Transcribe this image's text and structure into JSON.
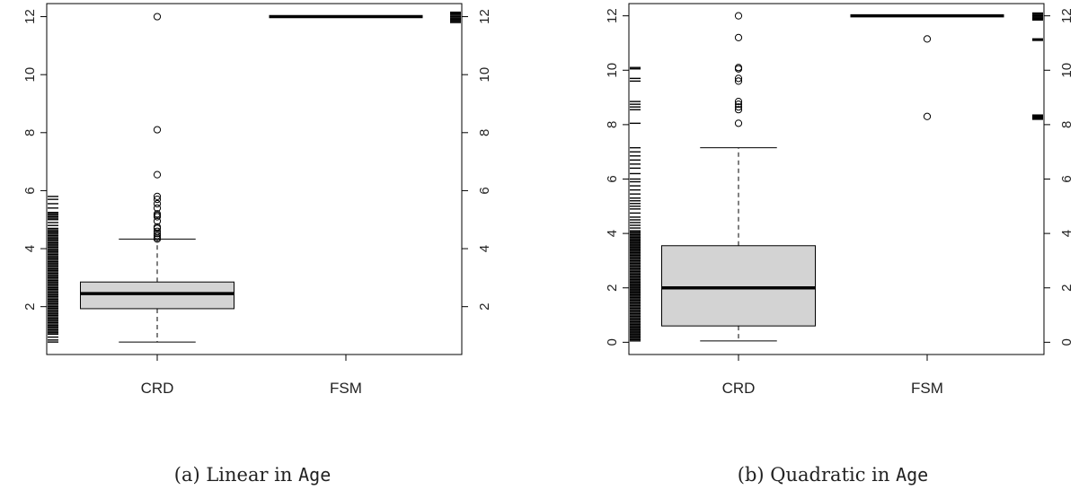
{
  "chart_data": [
    {
      "type": "boxplot",
      "caption_prefix": "(a) Linear in ",
      "caption_code": "Age",
      "categories": [
        "CRD",
        "FSM"
      ],
      "ylim": [
        0.35,
        12.45
      ],
      "yticks": [
        2,
        4,
        6,
        8,
        10,
        12
      ],
      "right_ticks": [
        2,
        4,
        6,
        8,
        10,
        12
      ],
      "boxes": [
        {
          "category": "CRD",
          "q1": 1.93,
          "median": 2.45,
          "q3": 2.85,
          "whisker_low": 0.78,
          "whisker_high": 4.33,
          "outliers": [
            4.33,
            4.38,
            4.45,
            4.52,
            4.6,
            4.7,
            4.75,
            4.95,
            5.1,
            5.15,
            5.2,
            5.4,
            5.55,
            5.7,
            5.8,
            6.55,
            8.1,
            12.0
          ]
        },
        {
          "category": "FSM",
          "q1": 12.0,
          "median": 12.0,
          "q3": 12.0,
          "whisker_low": 12.0,
          "whisker_high": 12.0,
          "outliers": []
        }
      ],
      "rug_left": [
        0.78,
        0.85,
        0.95,
        1.05,
        1.1,
        1.15,
        1.2,
        1.25,
        1.3,
        1.35,
        1.4,
        1.45,
        1.5,
        1.55,
        1.6,
        1.65,
        1.7,
        1.75,
        1.8,
        1.85,
        1.9,
        1.95,
        2.0,
        2.05,
        2.1,
        2.15,
        2.2,
        2.25,
        2.3,
        2.35,
        2.4,
        2.45,
        2.5,
        2.55,
        2.6,
        2.65,
        2.7,
        2.75,
        2.8,
        2.85,
        2.9,
        2.95,
        3.0,
        3.05,
        3.1,
        3.15,
        3.2,
        3.25,
        3.3,
        3.35,
        3.4,
        3.45,
        3.5,
        3.55,
        3.6,
        3.65,
        3.7,
        3.75,
        3.8,
        3.85,
        3.9,
        3.95,
        4.0,
        4.05,
        4.1,
        4.15,
        4.2,
        4.25,
        4.3,
        4.35,
        4.4,
        4.45,
        4.5,
        4.55,
        4.6,
        4.65,
        4.7,
        4.8,
        4.9,
        5.0,
        5.05,
        5.1,
        5.15,
        5.2,
        5.25,
        5.4,
        5.55,
        5.7,
        5.8
      ],
      "rug_right": [
        11.8,
        11.85,
        11.9,
        11.95,
        12.0,
        12.05,
        12.1,
        12.15
      ]
    },
    {
      "type": "boxplot",
      "caption_prefix": "(b) Quadratic in ",
      "caption_code": "Age",
      "categories": [
        "CRD",
        "FSM"
      ],
      "ylim": [
        -0.45,
        12.45
      ],
      "yticks": [
        0,
        2,
        4,
        6,
        8,
        10,
        12
      ],
      "right_ticks": [
        0,
        2,
        4,
        6,
        8,
        10,
        12
      ],
      "boxes": [
        {
          "category": "CRD",
          "q1": 0.6,
          "median": 2.0,
          "q3": 3.55,
          "whisker_low": 0.05,
          "whisker_high": 7.15,
          "outliers": [
            8.05,
            8.55,
            8.65,
            8.75,
            8.85,
            9.6,
            9.7,
            10.05,
            10.1,
            11.2,
            12.0
          ]
        },
        {
          "category": "FSM",
          "q1": 12.0,
          "median": 12.0,
          "q3": 12.0,
          "whisker_low": 12.0,
          "whisker_high": 12.0,
          "outliers": [
            8.3,
            11.15
          ]
        }
      ],
      "rug_left": [
        0.05,
        0.1,
        0.15,
        0.2,
        0.25,
        0.3,
        0.35,
        0.4,
        0.45,
        0.5,
        0.55,
        0.6,
        0.65,
        0.7,
        0.75,
        0.8,
        0.85,
        0.9,
        0.95,
        1.0,
        1.05,
        1.1,
        1.15,
        1.2,
        1.25,
        1.3,
        1.35,
        1.4,
        1.45,
        1.5,
        1.55,
        1.6,
        1.65,
        1.7,
        1.75,
        1.8,
        1.85,
        1.9,
        1.95,
        2.0,
        2.05,
        2.1,
        2.15,
        2.2,
        2.25,
        2.3,
        2.35,
        2.4,
        2.45,
        2.5,
        2.55,
        2.6,
        2.65,
        2.7,
        2.75,
        2.8,
        2.85,
        2.9,
        2.95,
        3.0,
        3.05,
        3.1,
        3.15,
        3.2,
        3.25,
        3.3,
        3.35,
        3.4,
        3.45,
        3.5,
        3.55,
        3.6,
        3.65,
        3.7,
        3.75,
        3.8,
        3.85,
        3.9,
        3.95,
        4.0,
        4.05,
        4.1,
        4.2,
        4.3,
        4.4,
        4.5,
        4.6,
        4.75,
        4.9,
        5.0,
        5.1,
        5.2,
        5.3,
        5.45,
        5.6,
        5.75,
        5.9,
        6.0,
        6.2,
        6.4,
        6.55,
        6.7,
        6.85,
        7.0,
        7.15,
        8.05,
        8.55,
        8.65,
        8.75,
        8.85,
        9.6,
        9.7,
        10.05,
        10.1
      ],
      "rug_right": [
        8.2,
        8.25,
        8.3,
        8.35,
        11.1,
        11.15,
        11.85,
        11.9,
        11.95,
        12.0,
        12.05,
        12.1
      ]
    }
  ]
}
